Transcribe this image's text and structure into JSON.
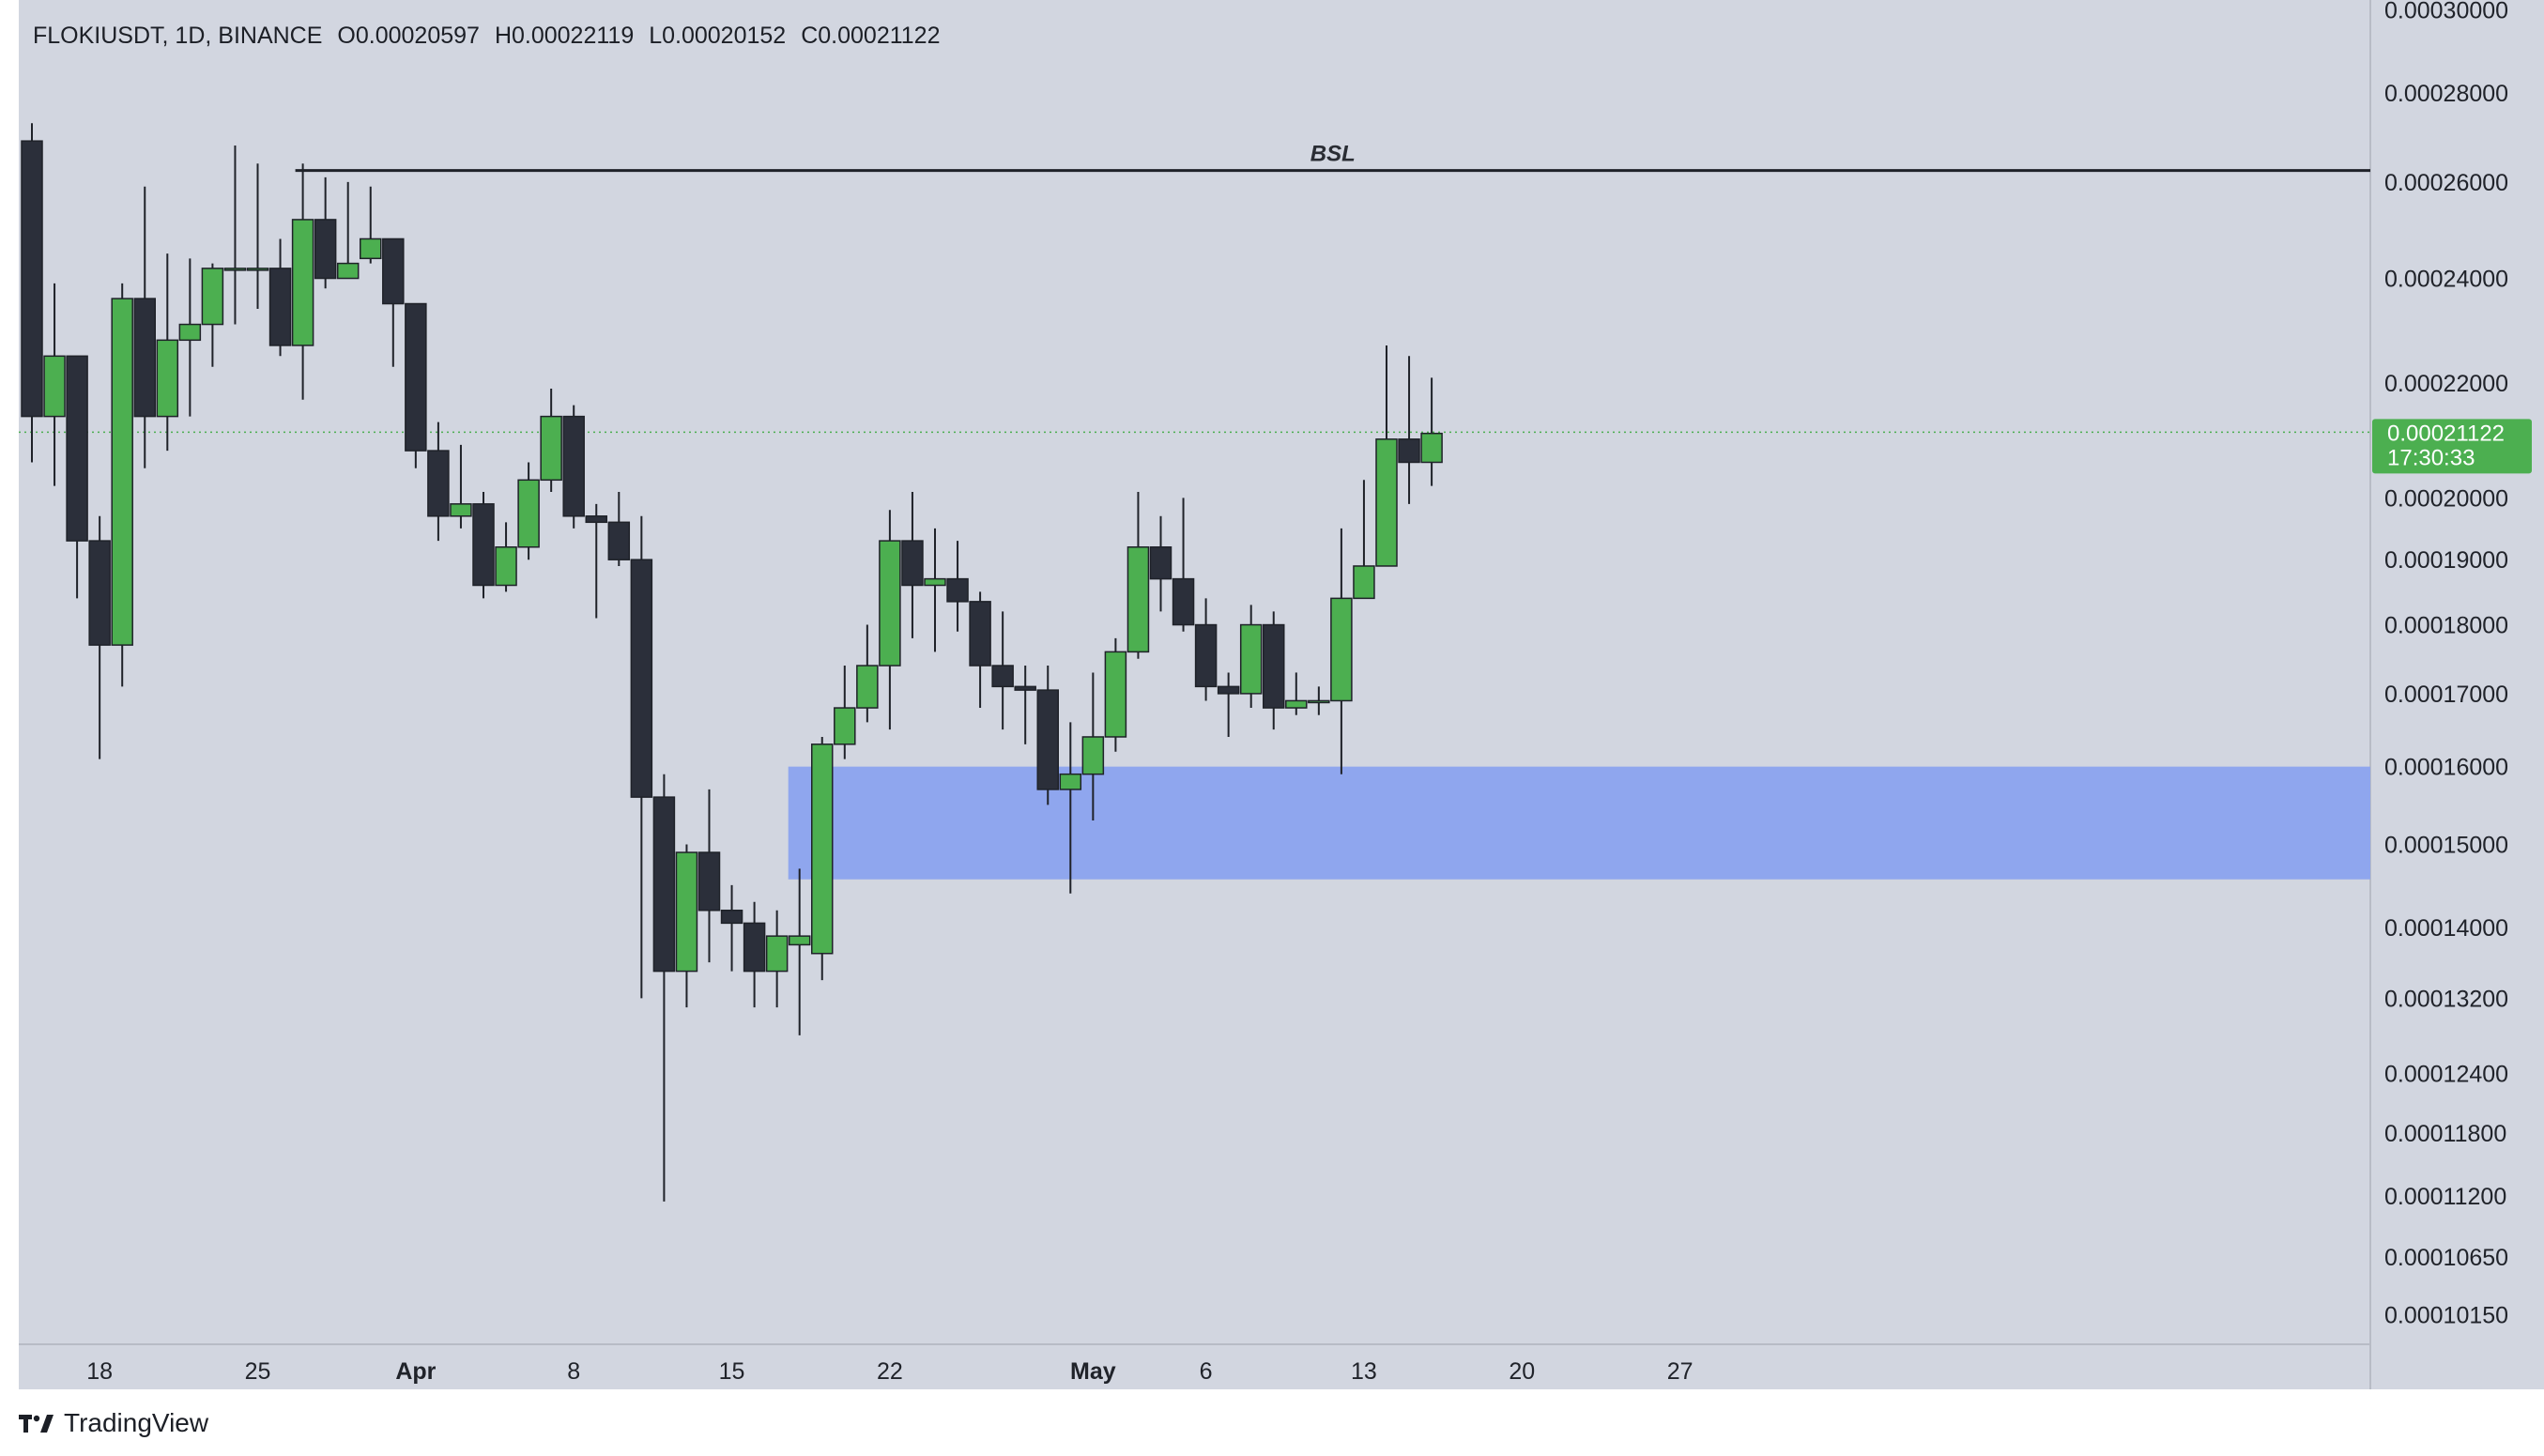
{
  "header": {
    "symbol": "FLOKIUSDT, 1D, BINANCE",
    "open": "O0.00020597",
    "high": "H0.00022119",
    "low": "L0.00020152",
    "close": "C0.00021122"
  },
  "brand": {
    "name": "TradingView",
    "icon": "tradingview-logo-icon"
  },
  "colors": {
    "background": "#d2d6e0",
    "up": "#4caf50",
    "down": "#2b2f3a",
    "wick": "#1f2229",
    "zone": "#8fa6ee",
    "bsl_line": "#1f2229",
    "last_price_tag": "#4caf50"
  },
  "chart_data": {
    "type": "candlestick",
    "y_scale": "log",
    "ylim": [
      9.95e-05,
      0.000301
    ],
    "y_ticks": [
      "0.00030000",
      "0.00028000",
      "0.00026000",
      "0.00024000",
      "0.00022000",
      "0.00020000",
      "0.00019000",
      "0.00018000",
      "0.00017000",
      "0.00016000",
      "0.00015000",
      "0.00014000",
      "0.00013200",
      "0.00012400",
      "0.00011800",
      "0.00011200",
      "0.00010650",
      "0.00010150"
    ],
    "x_ticks": [
      {
        "label": "18",
        "date": "2024-03-18",
        "bold": false
      },
      {
        "label": "25",
        "date": "2024-03-25",
        "bold": false
      },
      {
        "label": "Apr",
        "date": "2024-04-01",
        "bold": true
      },
      {
        "label": "8",
        "date": "2024-04-08",
        "bold": false
      },
      {
        "label": "15",
        "date": "2024-04-15",
        "bold": false
      },
      {
        "label": "22",
        "date": "2024-04-22",
        "bold": false
      },
      {
        "label": "May",
        "date": "2024-05-01",
        "bold": true
      },
      {
        "label": "6",
        "date": "2024-05-06",
        "bold": false
      },
      {
        "label": "13",
        "date": "2024-05-13",
        "bold": false
      },
      {
        "label": "20",
        "date": "2024-05-20",
        "bold": false
      },
      {
        "label": "27",
        "date": "2024-05-27",
        "bold": false
      }
    ],
    "candles": [
      {
        "date": "2024-03-15",
        "o": 0.000269,
        "h": 0.000273,
        "l": 0.000206,
        "c": 0.000214
      },
      {
        "date": "2024-03-16",
        "o": 0.000214,
        "h": 0.000239,
        "l": 0.000202,
        "c": 0.000225
      },
      {
        "date": "2024-03-17",
        "o": 0.000225,
        "h": 0.000225,
        "l": 0.000184,
        "c": 0.000193
      },
      {
        "date": "2024-03-18",
        "o": 0.000193,
        "h": 0.000197,
        "l": 0.000161,
        "c": 0.000177
      },
      {
        "date": "2024-03-19",
        "o": 0.000177,
        "h": 0.000239,
        "l": 0.000171,
        "c": 0.000236
      },
      {
        "date": "2024-03-20",
        "o": 0.000236,
        "h": 0.000259,
        "l": 0.000205,
        "c": 0.000214
      },
      {
        "date": "2024-03-21",
        "o": 0.000214,
        "h": 0.000245,
        "l": 0.000208,
        "c": 0.000228
      },
      {
        "date": "2024-03-22",
        "o": 0.000228,
        "h": 0.000244,
        "l": 0.000214,
        "c": 0.000231
      },
      {
        "date": "2024-03-23",
        "o": 0.000231,
        "h": 0.000243,
        "l": 0.000223,
        "c": 0.000242
      },
      {
        "date": "2024-03-24",
        "o": 0.000242,
        "h": 0.000268,
        "l": 0.000231,
        "c": 0.000242
      },
      {
        "date": "2024-03-25",
        "o": 0.000242,
        "h": 0.000264,
        "l": 0.000234,
        "c": 0.000242
      },
      {
        "date": "2024-03-26",
        "o": 0.000242,
        "h": 0.000248,
        "l": 0.000225,
        "c": 0.000227
      },
      {
        "date": "2024-03-27",
        "o": 0.000227,
        "h": 0.000264,
        "l": 0.000217,
        "c": 0.000252
      },
      {
        "date": "2024-03-28",
        "o": 0.000252,
        "h": 0.000261,
        "l": 0.000238,
        "c": 0.00024
      },
      {
        "date": "2024-03-29",
        "o": 0.00024,
        "h": 0.00026,
        "l": 0.00024,
        "c": 0.000243
      },
      {
        "date": "2024-03-30",
        "o": 0.000244,
        "h": 0.000259,
        "l": 0.000243,
        "c": 0.000248
      },
      {
        "date": "2024-03-31",
        "o": 0.000248,
        "h": 0.000248,
        "l": 0.000223,
        "c": 0.000235
      },
      {
        "date": "2024-04-01",
        "o": 0.000235,
        "h": 0.000235,
        "l": 0.000205,
        "c": 0.000208
      },
      {
        "date": "2024-04-02",
        "o": 0.000208,
        "h": 0.000213,
        "l": 0.000193,
        "c": 0.000197
      },
      {
        "date": "2024-04-03",
        "o": 0.000197,
        "h": 0.000209,
        "l": 0.000195,
        "c": 0.000199
      },
      {
        "date": "2024-04-04",
        "o": 0.000199,
        "h": 0.000201,
        "l": 0.000184,
        "c": 0.000186
      },
      {
        "date": "2024-04-05",
        "o": 0.000186,
        "h": 0.000196,
        "l": 0.000185,
        "c": 0.000192
      },
      {
        "date": "2024-04-06",
        "o": 0.000192,
        "h": 0.000206,
        "l": 0.00019,
        "c": 0.000203
      },
      {
        "date": "2024-04-07",
        "o": 0.000203,
        "h": 0.000219,
        "l": 0.000201,
        "c": 0.000214
      },
      {
        "date": "2024-04-08",
        "o": 0.000214,
        "h": 0.000216,
        "l": 0.000195,
        "c": 0.000197
      },
      {
        "date": "2024-04-09",
        "o": 0.000197,
        "h": 0.000199,
        "l": 0.000181,
        "c": 0.000196
      },
      {
        "date": "2024-04-10",
        "o": 0.000196,
        "h": 0.000201,
        "l": 0.000189,
        "c": 0.00019
      },
      {
        "date": "2024-04-11",
        "o": 0.00019,
        "h": 0.000197,
        "l": 0.000132,
        "c": 0.000156
      },
      {
        "date": "2024-04-12",
        "o": 0.000156,
        "h": 0.000159,
        "l": 0.0001115,
        "c": 0.000135
      },
      {
        "date": "2024-04-13",
        "o": 0.000135,
        "h": 0.00015,
        "l": 0.000131,
        "c": 0.000149
      },
      {
        "date": "2024-04-14",
        "o": 0.000149,
        "h": 0.000157,
        "l": 0.000136,
        "c": 0.000142
      },
      {
        "date": "2024-04-15",
        "o": 0.000142,
        "h": 0.000145,
        "l": 0.000135,
        "c": 0.0001405
      },
      {
        "date": "2024-04-16",
        "o": 0.0001405,
        "h": 0.000143,
        "l": 0.000131,
        "c": 0.000135
      },
      {
        "date": "2024-04-17",
        "o": 0.000135,
        "h": 0.000142,
        "l": 0.000131,
        "c": 0.000139
      },
      {
        "date": "2024-04-18",
        "o": 0.000138,
        "h": 0.000147,
        "l": 0.000128,
        "c": 0.000139
      },
      {
        "date": "2024-04-19",
        "o": 0.000137,
        "h": 0.000164,
        "l": 0.000134,
        "c": 0.000163
      },
      {
        "date": "2024-04-20",
        "o": 0.000163,
        "h": 0.000174,
        "l": 0.000161,
        "c": 0.000168
      },
      {
        "date": "2024-04-21",
        "o": 0.000168,
        "h": 0.00018,
        "l": 0.000166,
        "c": 0.000174
      },
      {
        "date": "2024-04-22",
        "o": 0.000174,
        "h": 0.000198,
        "l": 0.000165,
        "c": 0.000193
      },
      {
        "date": "2024-04-23",
        "o": 0.000193,
        "h": 0.000201,
        "l": 0.000178,
        "c": 0.000186
      },
      {
        "date": "2024-04-24",
        "o": 0.000186,
        "h": 0.000195,
        "l": 0.000176,
        "c": 0.000187
      },
      {
        "date": "2024-04-25",
        "o": 0.000187,
        "h": 0.000193,
        "l": 0.000179,
        "c": 0.0001835
      },
      {
        "date": "2024-04-26",
        "o": 0.0001835,
        "h": 0.000185,
        "l": 0.000168,
        "c": 0.000174
      },
      {
        "date": "2024-04-27",
        "o": 0.000174,
        "h": 0.000182,
        "l": 0.000165,
        "c": 0.000171
      },
      {
        "date": "2024-04-28",
        "o": 0.000171,
        "h": 0.000174,
        "l": 0.000163,
        "c": 0.0001705
      },
      {
        "date": "2024-04-29",
        "o": 0.0001705,
        "h": 0.000174,
        "l": 0.000155,
        "c": 0.000157
      },
      {
        "date": "2024-04-30",
        "o": 0.000157,
        "h": 0.000166,
        "l": 0.000144,
        "c": 0.000159
      },
      {
        "date": "2024-05-01",
        "o": 0.000159,
        "h": 0.000173,
        "l": 0.000153,
        "c": 0.000164
      },
      {
        "date": "2024-05-02",
        "o": 0.000164,
        "h": 0.000178,
        "l": 0.000162,
        "c": 0.000176
      },
      {
        "date": "2024-05-03",
        "o": 0.000176,
        "h": 0.000201,
        "l": 0.000175,
        "c": 0.000192
      },
      {
        "date": "2024-05-04",
        "o": 0.000192,
        "h": 0.000197,
        "l": 0.000182,
        "c": 0.000187
      },
      {
        "date": "2024-05-05",
        "o": 0.000187,
        "h": 0.0002,
        "l": 0.000179,
        "c": 0.00018
      },
      {
        "date": "2024-05-06",
        "o": 0.00018,
        "h": 0.000184,
        "l": 0.000169,
        "c": 0.000171
      },
      {
        "date": "2024-05-07",
        "o": 0.000171,
        "h": 0.000173,
        "l": 0.000164,
        "c": 0.00017
      },
      {
        "date": "2024-05-08",
        "o": 0.00017,
        "h": 0.000183,
        "l": 0.000168,
        "c": 0.00018
      },
      {
        "date": "2024-05-09",
        "o": 0.00018,
        "h": 0.000182,
        "l": 0.000165,
        "c": 0.000168
      },
      {
        "date": "2024-05-10",
        "o": 0.000168,
        "h": 0.000173,
        "l": 0.000167,
        "c": 0.000169
      },
      {
        "date": "2024-05-11",
        "o": 0.000169,
        "h": 0.000171,
        "l": 0.000167,
        "c": 0.000169
      },
      {
        "date": "2024-05-12",
        "o": 0.000169,
        "h": 0.000195,
        "l": 0.000159,
        "c": 0.000184
      },
      {
        "date": "2024-05-13",
        "o": 0.000184,
        "h": 0.000203,
        "l": 0.000184,
        "c": 0.000189
      },
      {
        "date": "2024-05-14",
        "o": 0.000189,
        "h": 0.000227,
        "l": 0.000189,
        "c": 0.00021
      },
      {
        "date": "2024-05-15",
        "o": 0.00021,
        "h": 0.000225,
        "l": 0.000199,
        "c": 0.000206
      },
      {
        "date": "2024-05-16",
        "o": 0.000206,
        "h": 0.000221,
        "l": 0.000202,
        "c": 0.000211
      }
    ],
    "last_price": {
      "value": 0.00021122,
      "label": "0.00021122",
      "countdown": "17:30:33"
    },
    "bsl_line": {
      "label": "BSL",
      "price": 0.0002625,
      "from": "2024-03-27",
      "to": "2024-06-04"
    },
    "demand_zone": {
      "top": 0.00016,
      "bottom": 0.0001457,
      "from": "2024-04-18",
      "to": "2024-06-04"
    }
  }
}
